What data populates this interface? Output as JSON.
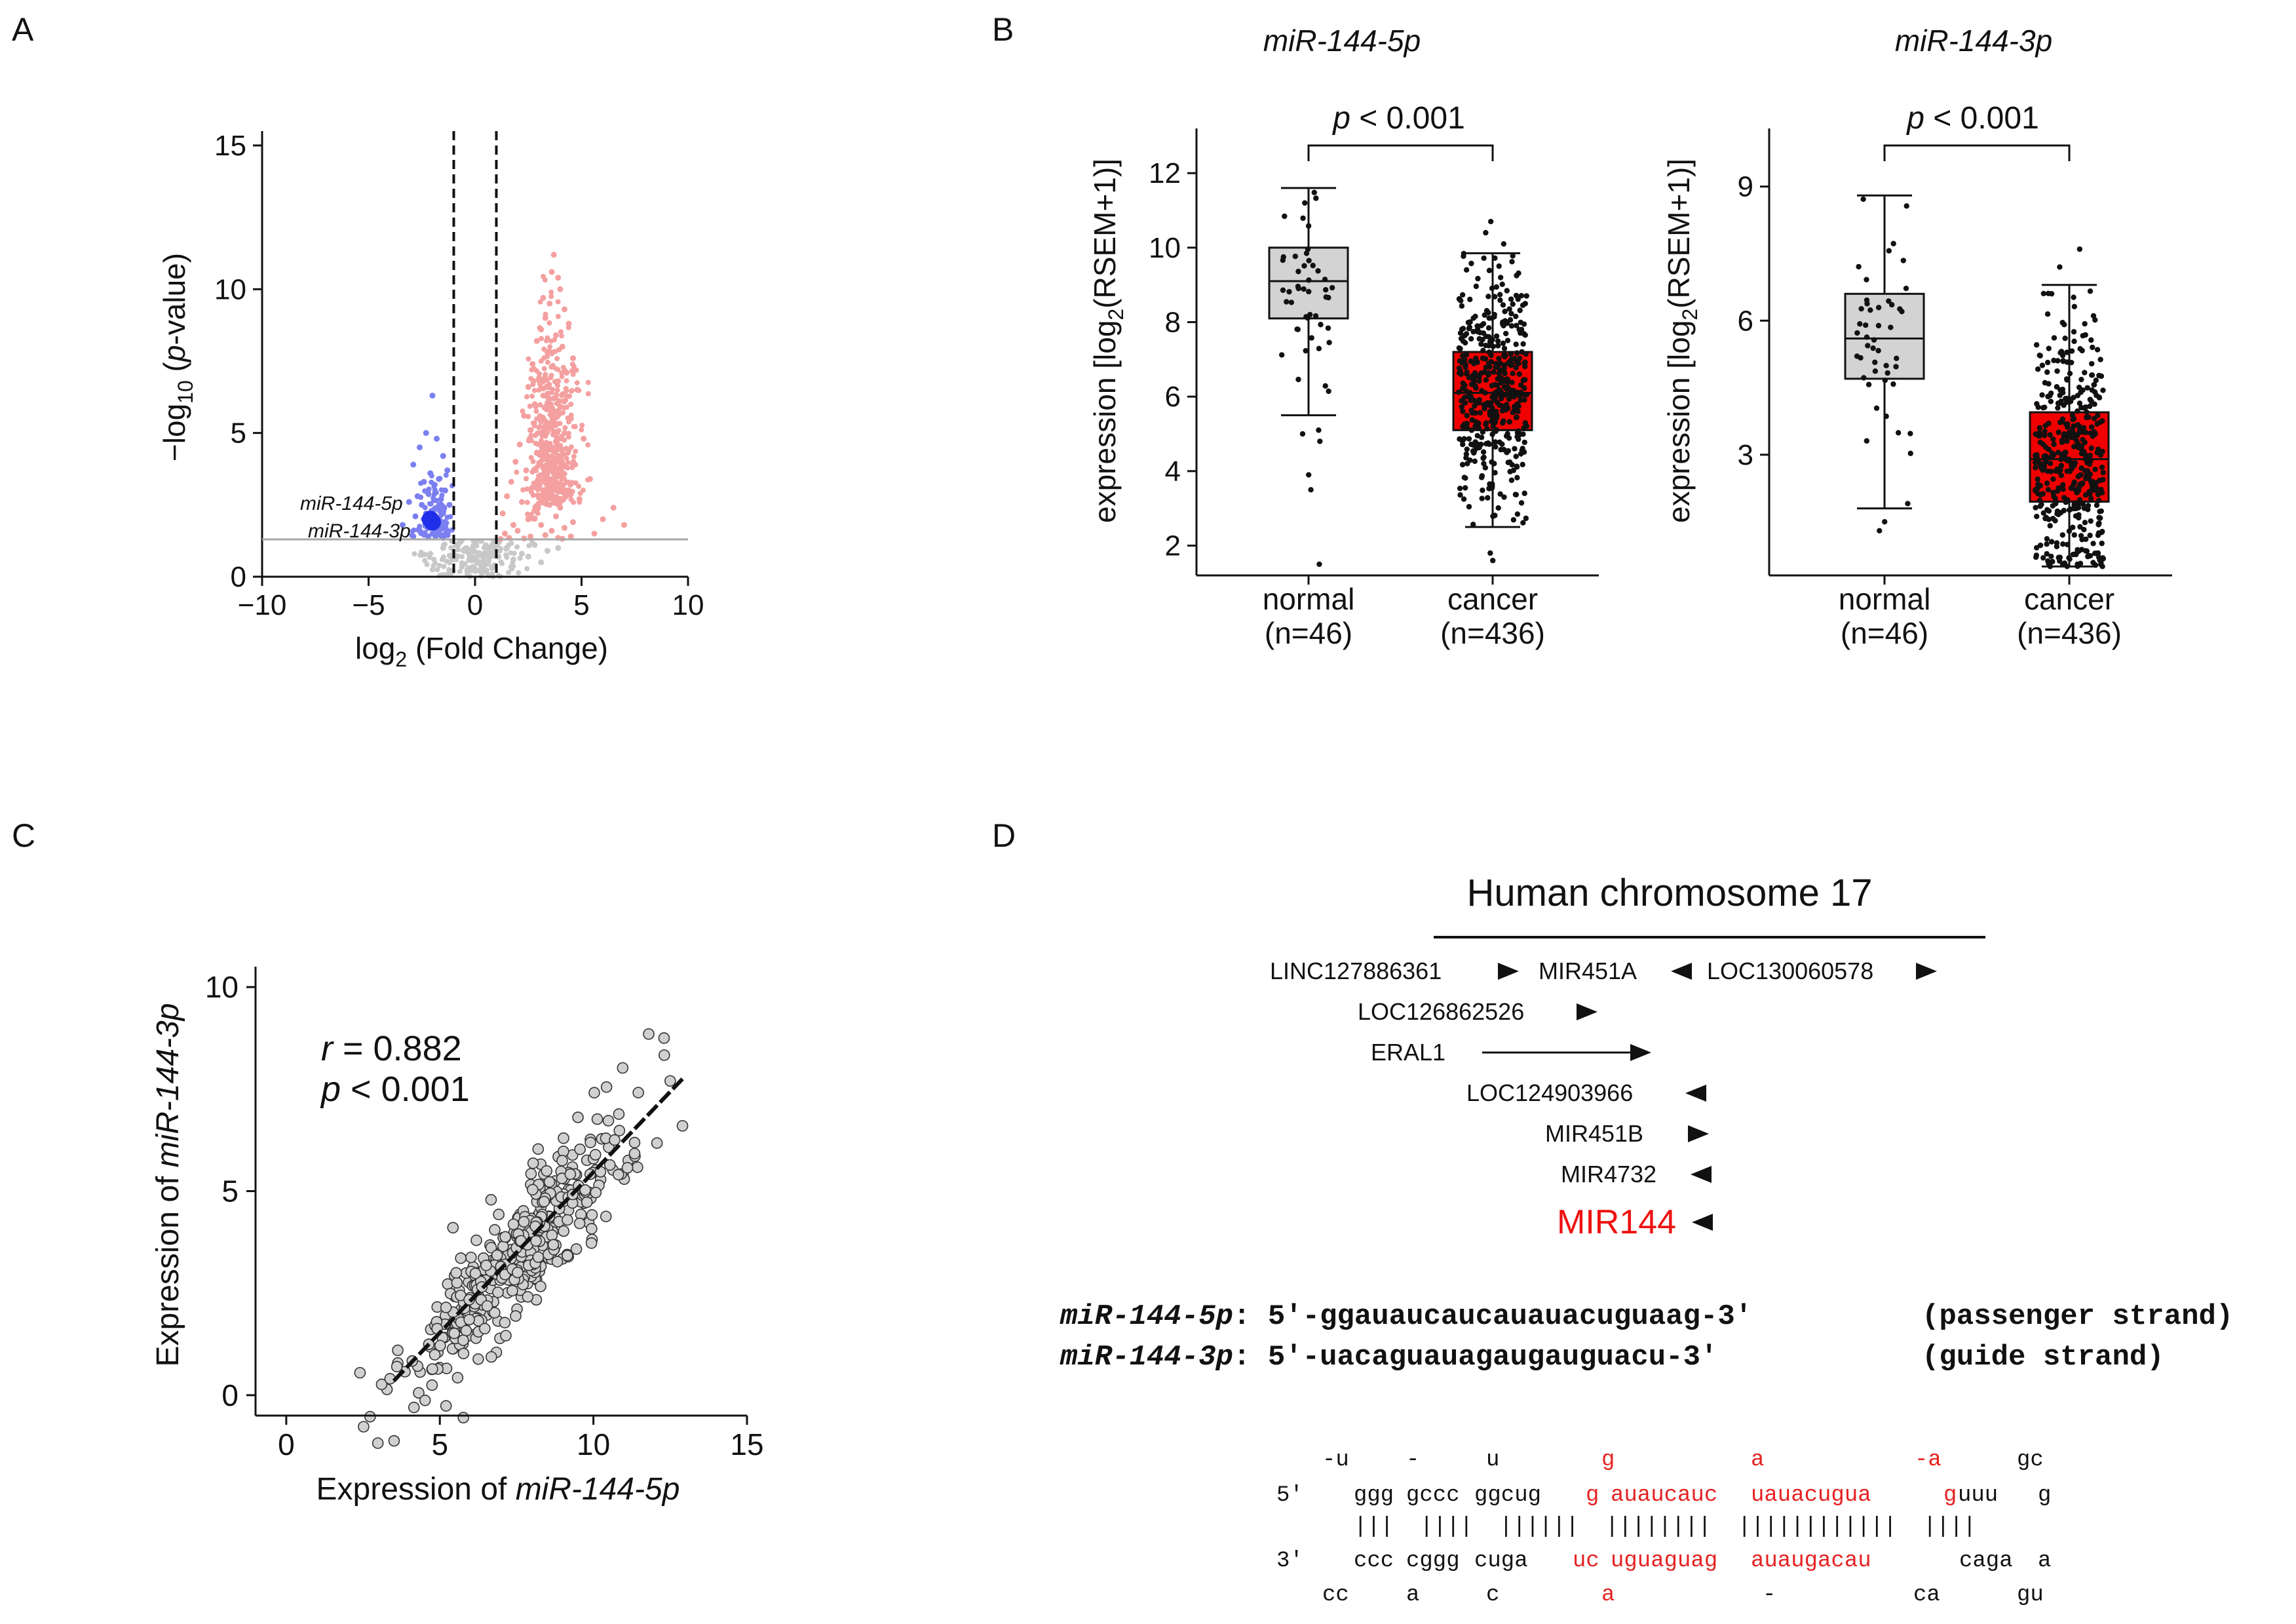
{
  "chart_data": [
    {
      "id": "A",
      "panel_label": "A",
      "type": "scatter",
      "title": "",
      "xlabel_prefix": "log",
      "xlabel_sub": "2",
      "xlabel_suffix": " (Fold Change)",
      "ylabel_prefix": "−log",
      "ylabel_sub": "10",
      "ylabel_open": " (",
      "ylabel_italic": "p",
      "ylabel_close": "-value)",
      "xlim": [
        -10,
        10
      ],
      "ylim": [
        0,
        15.5
      ],
      "xticks": [
        -10,
        -5,
        0,
        5,
        10
      ],
      "xtick_labels": [
        "−10",
        "−5",
        "0",
        "5",
        "10"
      ],
      "yticks": [
        0,
        5,
        10,
        15
      ],
      "ytick_labels": [
        "0",
        "5",
        "10",
        "15"
      ],
      "fold_change_thresholds": [
        -1,
        1
      ],
      "pvalue_threshold": 1.3,
      "colors": {
        "down": "#7b7ff0",
        "up": "#f4a0a0",
        "ns": "#c8c8c8",
        "highlight": "#1f2ee8"
      },
      "series": [
        {
          "name": "down-regulated",
          "color": "#7b7ff0",
          "x": [
            -2.0,
            -2.3,
            -1.8,
            -2.6,
            -1.5,
            -2.9,
            -1.3,
            -2.1,
            -1.7,
            -2.4,
            -1.9,
            -1.4,
            -2.2,
            -2.7,
            -1.6,
            -3.1,
            -1.2,
            -2.5,
            -1.8,
            -2.0,
            -2.3,
            -1.5,
            -2.8,
            -1.9,
            -1.6,
            -2.2,
            -1.4,
            -3.4,
            -2.1,
            -1.7,
            -2.6,
            -1.3,
            -2.4,
            -2.0,
            -1.8,
            -2.2,
            -1.5,
            -2.9
          ],
          "y": [
            6.3,
            5.0,
            4.8,
            4.5,
            4.2,
            3.9,
            3.7,
            3.6,
            3.4,
            3.3,
            3.2,
            3.0,
            2.9,
            2.8,
            2.7,
            2.6,
            2.5,
            2.5,
            2.4,
            2.3,
            2.2,
            2.2,
            2.1,
            2.0,
            1.9,
            1.9,
            1.8,
            1.8,
            1.7,
            1.7,
            1.6,
            1.6,
            1.5,
            1.5,
            1.45,
            1.4,
            1.35,
            1.4
          ]
        },
        {
          "name": "up-regulated",
          "color": "#f4a0a0",
          "x": [
            3.7,
            3.6,
            3.9,
            4.0,
            3.2,
            3.5,
            4.2,
            3.3,
            4.4,
            3.1,
            3.8,
            2.9,
            4.1,
            3.4,
            4.6,
            2.7,
            3.6,
            4.3,
            3.0,
            3.9,
            2.5,
            4.8,
            3.2,
            3.7,
            2.8,
            4.0,
            3.5,
            2.3,
            4.5,
            3.1,
            3.8,
            2.6,
            4.2,
            3.3,
            5.1,
            2.1,
            3.6,
            4.4,
            2.9,
            3.9,
            1.9,
            4.7,
            3.4,
            2.4,
            4.1,
            3.0,
            5.4,
            1.7,
            3.7,
            2.7,
            4.3,
            3.2,
            1.5,
            4.9,
            2.2,
            3.5,
            4.0,
            2.8,
            1.3,
            3.8,
            6.0,
            2.5,
            4.6,
            3.1,
            1.8,
            4.2,
            3.6,
            2.0,
            5.6,
            7.0,
            1.4,
            3.3,
            2.6,
            4.5,
            1.6,
            3.9,
            6.5,
            2.3,
            4.1,
            1.2
          ],
          "y": [
            11.2,
            10.6,
            10.4,
            10.0,
            9.7,
            9.5,
            9.3,
            9.0,
            8.8,
            8.6,
            8.4,
            8.2,
            8.0,
            7.8,
            7.6,
            7.4,
            7.3,
            7.1,
            6.9,
            6.8,
            6.6,
            6.5,
            6.3,
            6.2,
            6.0,
            5.9,
            5.8,
            5.6,
            5.5,
            5.4,
            5.3,
            5.1,
            5.0,
            4.9,
            4.8,
            4.6,
            4.5,
            4.4,
            4.3,
            4.2,
            4.0,
            3.9,
            3.8,
            3.7,
            3.6,
            3.5,
            3.4,
            3.3,
            3.2,
            3.1,
            3.0,
            2.9,
            2.8,
            2.7,
            2.6,
            2.5,
            2.4,
            2.3,
            2.2,
            2.1,
            2.0,
            2.0,
            1.9,
            1.8,
            1.8,
            1.7,
            1.6,
            1.6,
            1.5,
            1.8,
            1.5,
            1.45,
            1.4,
            1.4,
            1.35,
            1.35,
            2.4,
            1.33,
            1.32,
            1.31
          ]
        },
        {
          "name": "not significant",
          "color": "#c8c8c8",
          "x": [
            -0.8,
            -0.5,
            -0.2,
            0.1,
            0.4,
            0.7,
            0.9,
            -0.9,
            -0.6,
            -0.3,
            0.0,
            0.3,
            0.6,
            0.8,
            -0.7,
            -0.4,
            0.2,
            0.5,
            1.5,
            2.2,
            2.8,
            3.4,
            -1.5,
            -2.1,
            1.8,
            2.5,
            3.1,
            3.9,
            1.1,
            -1.2,
            0.9,
            -0.1
          ],
          "y": [
            1.1,
            0.9,
            0.7,
            0.5,
            0.6,
            0.8,
            1.0,
            0.6,
            0.4,
            0.3,
            0.2,
            0.35,
            0.45,
            0.3,
            1.2,
            1.0,
            0.8,
            1.1,
            1.0,
            0.8,
            1.1,
            0.9,
            1.0,
            0.8,
            0.6,
            0.7,
            0.5,
            1.0,
            0.7,
            0.5,
            0.4,
            0.9
          ]
        }
      ],
      "annotations": [
        {
          "label": "miR-144-5p",
          "x": -2.1,
          "y": 2.0
        },
        {
          "label": "miR-144-3p",
          "x": -2.0,
          "y": 1.9
        }
      ]
    },
    {
      "id": "B1",
      "panel_label": "B",
      "type": "box",
      "title": "miR-144-5p",
      "ylabel_prefix": "expression [log",
      "ylabel_sub": "2",
      "ylabel_suffix": "(RSEM+1)]",
      "ylim": [
        1.2,
        13.2
      ],
      "yticks": [
        2,
        4,
        6,
        8,
        10,
        12
      ],
      "ytick_labels": [
        "2",
        "4",
        "6",
        "8",
        "10",
        "12"
      ],
      "categories": [
        "normal\n(n=46)",
        "cancer\n(n=436)"
      ],
      "category_names": [
        "normal",
        "cancer"
      ],
      "category_ns": [
        "(n=46)",
        "(n=436)"
      ],
      "colors": [
        "#d3d3d3",
        "#f00000"
      ],
      "boxes": [
        {
          "whisker_low": 5.5,
          "q1": 8.1,
          "median": 9.1,
          "q3": 10.0,
          "whisker_high": 11.6,
          "n": 46,
          "outliers": [
            1.5,
            3.5,
            3.9,
            4.8,
            5.1,
            5.0
          ]
        },
        {
          "whisker_low": 2.5,
          "q1": 5.1,
          "median": 6.1,
          "q3": 7.2,
          "whisker_high": 9.85,
          "n": 436,
          "outliers": [
            1.6,
            1.8,
            10.1,
            10.4,
            10.7
          ]
        }
      ],
      "significance": "p < 0.001",
      "significance_italic": "p",
      "significance_rest": " < 0.001"
    },
    {
      "id": "B2",
      "panel_label": "",
      "type": "box",
      "title": "miR-144-3p",
      "ylabel_prefix": "expression [log",
      "ylabel_sub": "2",
      "ylabel_suffix": "(RSEM+1)]",
      "ylim": [
        0.3,
        10.3
      ],
      "yticks": [
        3,
        6,
        9
      ],
      "ytick_labels": [
        "3",
        "6",
        "9"
      ],
      "categories": [
        "normal\n(n=46)",
        "cancer\n(n=436)"
      ],
      "category_names": [
        "normal",
        "cancer"
      ],
      "category_ns": [
        "(n=46)",
        "(n=436)"
      ],
      "colors": [
        "#d3d3d3",
        "#f00000"
      ],
      "boxes": [
        {
          "whisker_low": 1.8,
          "q1": 4.7,
          "median": 5.6,
          "q3": 6.6,
          "whisker_high": 8.8,
          "n": 46,
          "outliers": [
            1.3,
            1.5
          ]
        },
        {
          "whisker_low": 0.5,
          "q1": 1.95,
          "median": 2.9,
          "q3": 3.95,
          "whisker_high": 6.8,
          "n": 436,
          "outliers": [
            7.2,
            7.6
          ]
        }
      ],
      "significance": "p < 0.001",
      "significance_italic": "p",
      "significance_rest": " < 0.001"
    },
    {
      "id": "C",
      "panel_label": "C",
      "type": "scatter",
      "title": "",
      "xlabel_prefix": "Expression of ",
      "xlabel_italic": "miR-144-5p",
      "ylabel_prefix": "Expression of ",
      "ylabel_italic": "miR-144-3p",
      "xlim": [
        -1,
        15
      ],
      "ylim": [
        -0.5,
        10.5
      ],
      "xticks": [
        0,
        5,
        10,
        15
      ],
      "xtick_labels": [
        "0",
        "5",
        "10",
        "15"
      ],
      "yticks": [
        0,
        5,
        10
      ],
      "ytick_labels": [
        "0",
        "5",
        "10"
      ],
      "n_points": 436,
      "r_label": "r",
      "r_text": " = 0.882",
      "p_label": "p",
      "p_text": " < 0.001",
      "r": 0.882,
      "fit_line": {
        "x": [
          3.5,
          12.9
        ],
        "y": [
          0.35,
          7.75
        ]
      },
      "x_range": [
        2.4,
        12.9
      ],
      "highlight_points": {
        "x": [
          2.4,
          3.6,
          11.8,
          12.3,
          12.9,
          12.5
        ],
        "y": [
          0.55,
          0.7,
          8.85,
          8.75,
          6.6,
          7.7
        ]
      },
      "colors": {
        "fill": "#d0d0d0",
        "stroke": "#333333"
      }
    }
  ],
  "panels": {
    "a_label": "A",
    "b_label": "B",
    "c_label": "C",
    "d_label": "D"
  },
  "panel_d": {
    "title": "Human chromosome 17",
    "genes": [
      {
        "name": "LINC127886361",
        "direction": "right"
      },
      {
        "name": "MIR451A",
        "direction": "left"
      },
      {
        "name": "LOC130060578",
        "direction": "right"
      },
      {
        "name": "LOC126862526",
        "direction": "right"
      },
      {
        "name": "ERAL1",
        "direction": "right"
      },
      {
        "name": "LOC124903966",
        "direction": "left"
      },
      {
        "name": "MIR451B",
        "direction": "right"
      },
      {
        "name": "MIR4732",
        "direction": "left"
      },
      {
        "name": "MIR144",
        "direction": "left",
        "color": "#ee1111"
      }
    ],
    "sequences": [
      {
        "name": "miR-144-5p",
        "sep": ": ",
        "seq": "5′-ggauaucaucauauacuguaag-3′",
        "strand": "(passenger strand)"
      },
      {
        "name": "miR-144-3p",
        "sep": ": ",
        "seq": "5′-uacaguauagaugauguacu-3′",
        "strand": "(guide strand)"
      }
    ],
    "hairpin": {
      "row1": [
        "-u",
        "-",
        "u",
        "g",
        "a",
        "-a",
        "gc"
      ],
      "row1_red": [
        false,
        false,
        false,
        true,
        true,
        true,
        false
      ],
      "row2_prefix": "5′",
      "row2": [
        "ggg",
        "gccc",
        "ggcug",
        "g",
        "auaucauc",
        "uauacugua",
        "g",
        "uuu",
        "g"
      ],
      "row2_red": [
        false,
        false,
        false,
        true,
        true,
        true,
        true,
        false,
        false
      ],
      "row3": "|||  ||||  ||||||  ||||||||  ||||||||||||  ||||",
      "row4_prefix": "3′",
      "row4": [
        "ccc",
        "cggg",
        "cuga",
        "uc",
        "uguaguag",
        "auaugacau",
        "caga",
        "a"
      ],
      "row4_red": [
        false,
        false,
        false,
        true,
        true,
        true,
        false,
        false
      ],
      "row5": [
        "cc",
        "a",
        "c",
        "a",
        "-",
        "ca",
        "gu"
      ],
      "row5_red": [
        false,
        false,
        false,
        true,
        false,
        false,
        false
      ],
      "red_color": "#e52222"
    }
  }
}
